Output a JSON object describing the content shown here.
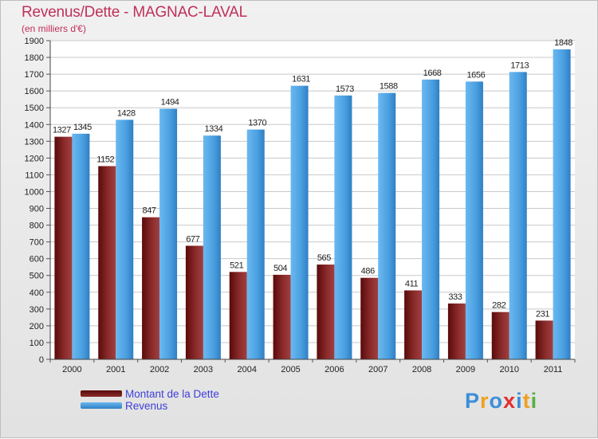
{
  "header": {
    "title": "Revenus/Dette - MAGNAC-LAVAL",
    "subtitle": "(en milliers d'€)"
  },
  "colors": {
    "title": "#c0305a",
    "debt": "#7a1a1a",
    "revenue": "#4a9fe0",
    "legend_text": "#3f3fd8"
  },
  "chart_data": {
    "type": "bar",
    "title": "Revenus/Dette - MAGNAC-LAVAL",
    "ylabel": "(en milliers d'€)",
    "xlabel": "",
    "ylim": [
      0,
      1900
    ],
    "ytick_step": 100,
    "grid": true,
    "legend_position": "bottom-left",
    "categories": [
      "2000",
      "2001",
      "2002",
      "2003",
      "2004",
      "2005",
      "2006",
      "2007",
      "2008",
      "2009",
      "2010",
      "2011"
    ],
    "series": [
      {
        "name": "Montant de la Dette",
        "values": [
          1327,
          1152,
          847,
          677,
          521,
          504,
          565,
          486,
          411,
          333,
          282,
          231
        ]
      },
      {
        "name": "Revenus",
        "values": [
          1345,
          1428,
          1494,
          1334,
          1370,
          1631,
          1573,
          1588,
          1668,
          1656,
          1713,
          1848
        ]
      }
    ]
  },
  "legend": {
    "debt_label": "Montant de la Dette",
    "revenue_label": "Revenus"
  },
  "logo": {
    "letters": [
      "P",
      "r",
      "o",
      "x",
      "i",
      "t",
      "i"
    ],
    "letter_colors": [
      "#3a8fd8",
      "#f0a020",
      "#3a8fd8",
      "#e03030",
      "#3a8fd8",
      "#f0a020",
      "#5ab040"
    ]
  }
}
